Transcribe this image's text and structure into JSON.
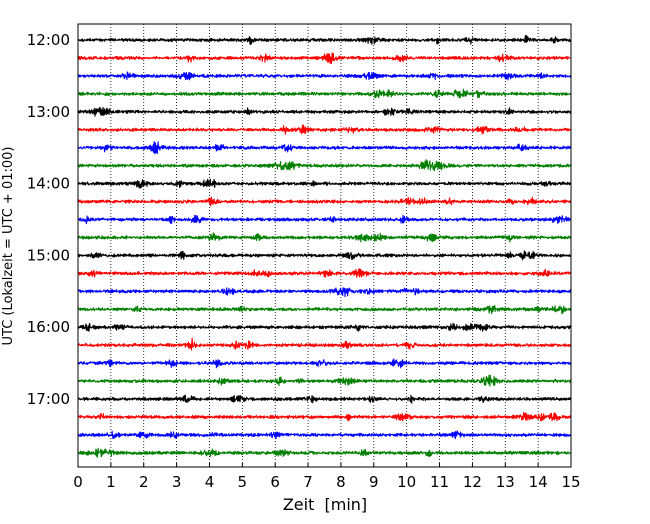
{
  "chart_data": {
    "type": "line",
    "title": "",
    "xlabel": "Zeit  [min]",
    "ylabel": "UTC (Lokalzeit = UTC + 01:00)",
    "xlim": [
      0,
      15
    ],
    "x_ticks": [
      "0",
      "1",
      "2",
      "3",
      "4",
      "5",
      "6",
      "7",
      "8",
      "9",
      "10",
      "11",
      "12",
      "13",
      "14",
      "15"
    ],
    "y_ticks": [
      "12:00",
      "13:00",
      "14:00",
      "15:00",
      "16:00",
      "17:00"
    ],
    "rows_per_hour": 4,
    "row_minutes": 15,
    "x_grid": "dotted",
    "y_grid": "off",
    "legend": "none",
    "series": [
      {
        "start": "12:00",
        "color": "#000000"
      },
      {
        "start": "12:15",
        "color": "#ff0000"
      },
      {
        "start": "12:30",
        "color": "#0000ff"
      },
      {
        "start": "12:45",
        "color": "#007f00"
      },
      {
        "start": "13:00",
        "color": "#000000"
      },
      {
        "start": "13:15",
        "color": "#ff0000"
      },
      {
        "start": "13:30",
        "color": "#0000ff"
      },
      {
        "start": "13:45",
        "color": "#007f00"
      },
      {
        "start": "14:00",
        "color": "#000000"
      },
      {
        "start": "14:15",
        "color": "#ff0000"
      },
      {
        "start": "14:30",
        "color": "#0000ff"
      },
      {
        "start": "14:45",
        "color": "#007f00"
      },
      {
        "start": "15:00",
        "color": "#000000"
      },
      {
        "start": "15:15",
        "color": "#ff0000"
      },
      {
        "start": "15:30",
        "color": "#0000ff"
      },
      {
        "start": "15:45",
        "color": "#007f00"
      },
      {
        "start": "16:00",
        "color": "#000000"
      },
      {
        "start": "16:15",
        "color": "#ff0000"
      },
      {
        "start": "16:30",
        "color": "#0000ff"
      },
      {
        "start": "16:45",
        "color": "#007f00"
      },
      {
        "start": "17:00",
        "color": "#000000"
      },
      {
        "start": "17:15",
        "color": "#ff0000"
      },
      {
        "start": "17:30",
        "color": "#0000ff"
      },
      {
        "start": "17:45",
        "color": "#007f00"
      }
    ]
  }
}
